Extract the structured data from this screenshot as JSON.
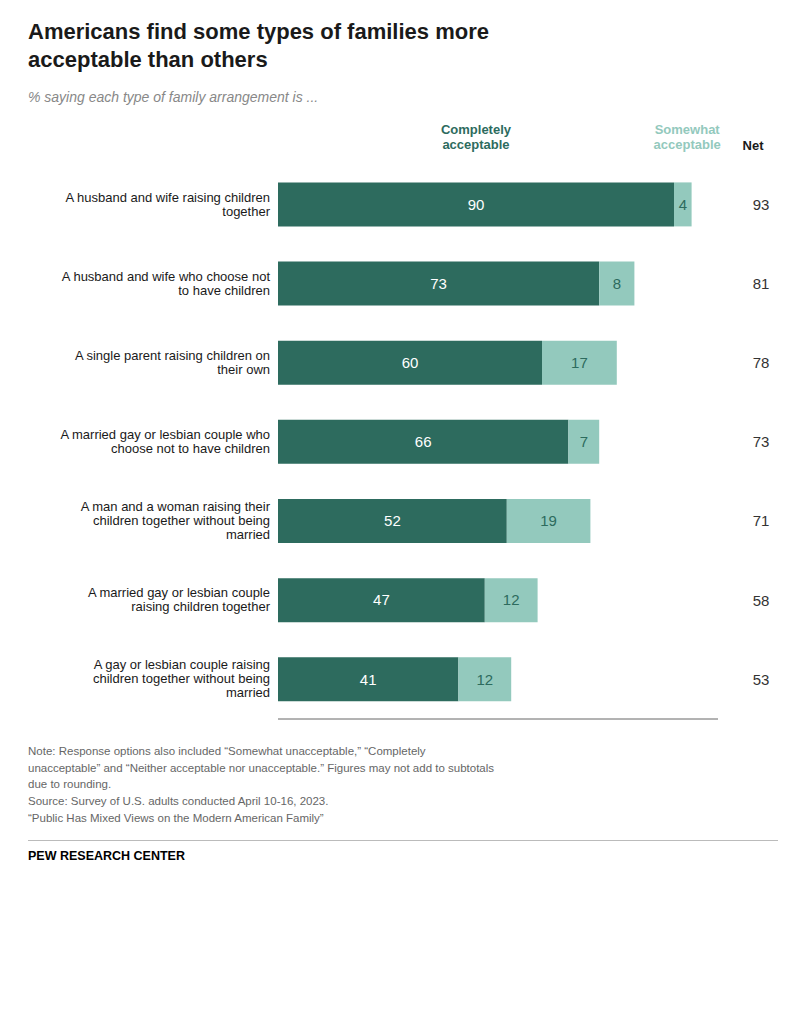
{
  "chart_data": {
    "type": "bar",
    "orientation": "horizontal",
    "stacked": true,
    "data_labels": true,
    "tick_labels": "y",
    "grid": false,
    "title": "Americans find some types of families more\nacceptable than others",
    "subtitle": "% saying each type of family arrangement is ...",
    "categories": [
      "A husband and wife raising children\ntogether",
      "A husband and wife who choose not\nto have children",
      "A single parent raising children on\ntheir own",
      "A married gay or lesbian couple who\nchoose not to have children",
      "A man and a woman raising their\nchildren together without being\nmarried",
      "A married gay or lesbian couple\nraising children together",
      "A gay or lesbian couple raising\nchildren together without being\nmarried"
    ],
    "series": [
      {
        "name": "Completely\nacceptable",
        "color": "#2d6b5e",
        "values": [
          90,
          73,
          60,
          66,
          52,
          47,
          41
        ]
      },
      {
        "name": "Somewhat\nacceptable",
        "color": "#93c9bd",
        "values": [
          4,
          8,
          17,
          7,
          19,
          12,
          12
        ]
      }
    ],
    "net_label": "Net",
    "net": [
      93,
      81,
      78,
      73,
      71,
      58,
      53
    ],
    "xlim": [
      0,
      100
    ],
    "notes": [
      "Note: Response options also included “Somewhat unacceptable,” “Completely",
      "unacceptable” and “Neither acceptable nor unacceptable.” Figures may not add to subtotals",
      "due to rounding.",
      "Source: Survey of U.S. adults conducted April 10-16, 2023.",
      "“Public Has Mixed Views on the Modern American Family”"
    ],
    "footer": "PEW RESEARCH CENTER"
  }
}
